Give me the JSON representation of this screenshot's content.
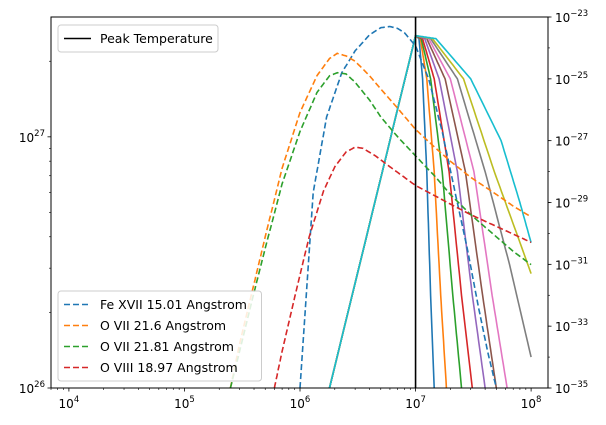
{
  "chart_data": {
    "type": "line",
    "x_scale": "log",
    "xlim": [
      7000,
      140000000
    ],
    "left_axis": {
      "scale": "log",
      "ylim": [
        1e+26,
        3e+27
      ]
    },
    "right_axis": {
      "scale": "log",
      "ylim": [
        1e-35,
        1e-23
      ]
    },
    "x_ticks": [
      {
        "value": 10000.0,
        "base": "10",
        "exp": "4"
      },
      {
        "value": 100000.0,
        "base": "10",
        "exp": "5"
      },
      {
        "value": 1000000.0,
        "base": "10",
        "exp": "6"
      },
      {
        "value": 10000000.0,
        "base": "10",
        "exp": "7"
      },
      {
        "value": 100000000.0,
        "base": "10",
        "exp": "8"
      }
    ],
    "left_ticks": [
      {
        "value": 1e+26,
        "base": "10",
        "exp": "26"
      },
      {
        "value": 1e+27,
        "base": "10",
        "exp": "27"
      }
    ],
    "right_ticks": [
      {
        "value": 1e-35,
        "base": "10",
        "exp": "−35"
      },
      {
        "value": 1e-33,
        "base": "10",
        "exp": "−33"
      },
      {
        "value": 1e-31,
        "base": "10",
        "exp": "−31"
      },
      {
        "value": 1e-29,
        "base": "10",
        "exp": "−29"
      },
      {
        "value": 1e-27,
        "base": "10",
        "exp": "−27"
      },
      {
        "value": 1e-25,
        "base": "10",
        "exp": "−25"
      },
      {
        "value": 1e-23,
        "base": "10",
        "exp": "−23"
      }
    ],
    "vline": {
      "x": 10000000.0,
      "label": "Peak Temperature",
      "color": "#000000"
    },
    "dashed_series": [
      {
        "name": "Fe XVII 15.01 Angstrom",
        "color": "#1f77b4",
        "axis": "left",
        "x": [
          1000000.0,
          1300000.0,
          1700000.0,
          2300000.0,
          3000000.0,
          4000000.0,
          5000000.0,
          6000000.0,
          7000000.0,
          8000000.0,
          10000000.0,
          13000000.0,
          17000000.0,
          22000000.0,
          28000000.0,
          35000000.0,
          42000000.0,
          50000000.0
        ],
        "y": [
          1e+26,
          6e+26,
          1.2e+27,
          1.8e+27,
          2.2e+27,
          2.55e+27,
          2.72e+27,
          2.75e+27,
          2.7e+27,
          2.6e+27,
          2.3e+27,
          1.7e+27,
          1.05e+27,
          6e+26,
          3.6e+26,
          2.1e+26,
          1.4e+26,
          1e+26
        ]
      },
      {
        "name": "O VII 21.6 Angstrom",
        "color": "#ff7f0e",
        "axis": "left",
        "x": [
          250000.0,
          300000.0,
          400000.0,
          500000.0,
          700000.0,
          1000000.0,
          1400000.0,
          1800000.0,
          2100000.0,
          2500000.0,
          3000000.0,
          4000000.0,
          5000000.0,
          7000000.0,
          10000000.0,
          15000000.0,
          20000000.0,
          30000000.0,
          50000000.0,
          70000000.0,
          100000000.0
        ],
        "y": [
          1e+26,
          1.5e+26,
          2.6e+26,
          4e+26,
          7.5e+26,
          1.25e+27,
          1.75e+27,
          2.05e+27,
          2.15e+27,
          2.1e+27,
          2e+27,
          1.75e+27,
          1.55e+27,
          1.3e+27,
          1.07e+27,
          9e+26,
          8e+26,
          6.9e+26,
          5.9e+26,
          5.3e+26,
          4.8e+26
        ]
      },
      {
        "name": "O VII 21.81 Angstrom",
        "color": "#2ca02c",
        "axis": "left",
        "x": [
          250000.0,
          300000.0,
          400000.0,
          500000.0,
          700000.0,
          1000000.0,
          1400000.0,
          1800000.0,
          2100000.0,
          2500000.0,
          3000000.0,
          4000000.0,
          5000000.0,
          7000000.0,
          10000000.0,
          15000000.0,
          20000000.0,
          30000000.0,
          50000000.0,
          70000000.0,
          100000000.0
        ],
        "y": [
          1e+26,
          1.4e+26,
          2.4e+26,
          3.6e+26,
          6.5e+26,
          1.05e+27,
          1.5e+27,
          1.75e+27,
          1.8e+27,
          1.78e+27,
          1.65e+27,
          1.4e+27,
          1.2e+27,
          1e+27,
          8.4e+26,
          6.9e+26,
          5.9e+26,
          4.9e+26,
          4e+26,
          3.5e+26,
          3.1e+26
        ]
      },
      {
        "name": "O VIII 18.97 Angstrom",
        "color": "#d62728",
        "axis": "left",
        "x": [
          600000.0,
          700000.0,
          900000.0,
          1200000.0,
          1600000.0,
          2000000.0,
          2500000.0,
          3000000.0,
          3500000.0,
          4500000.0,
          6000000.0,
          8000000.0,
          10000000.0,
          15000000.0,
          20000000.0,
          30000000.0,
          50000000.0,
          70000000.0,
          100000000.0
        ],
        "y": [
          1e+26,
          1.4e+26,
          2.3e+26,
          4e+26,
          6.1e+26,
          7.6e+26,
          8.7e+26,
          9.1e+26,
          9e+26,
          8.4e+26,
          7.6e+26,
          6.9e+26,
          6.4e+26,
          5.8e+26,
          5.4e+26,
          4.9e+26,
          4.4e+26,
          4.1e+26,
          3.8e+26
        ]
      }
    ],
    "solid_series": [
      {
        "color": "#1f77b4",
        "axis": "right",
        "x": [
          1800000.0,
          10000000.0,
          10700000.0,
          11500000.0,
          12500000.0,
          13500000.0,
          14500000.0
        ],
        "y": [
          1e-35,
          2.5e-24,
          2e-24,
          1e-25,
          1e-28,
          1e-32,
          1e-35
        ]
      },
      {
        "color": "#ff7f0e",
        "axis": "right",
        "x": [
          1800000.0,
          10000000.0,
          11000000.0,
          12500000.0,
          14500000.0,
          16500000.0,
          18500000.0
        ],
        "y": [
          1e-35,
          2.5e-24,
          2e-24,
          1e-25,
          1e-28,
          1e-32,
          1e-35
        ]
      },
      {
        "color": "#2ca02c",
        "axis": "right",
        "x": [
          1800000.0,
          10000000.0,
          11200000.0,
          13500000.0,
          17000000.0,
          21000000.0,
          25000000.0
        ],
        "y": [
          1e-35,
          2.5e-24,
          2e-24,
          1e-25,
          1e-28,
          1e-32,
          1e-35
        ]
      },
      {
        "color": "#d62728",
        "axis": "right",
        "x": [
          1800000.0,
          10000000.0,
          11500000.0,
          14500000.0,
          19500000.0,
          25000000.0,
          31000000.0
        ],
        "y": [
          1e-35,
          2.5e-24,
          2e-24,
          1e-25,
          1e-28,
          1e-32,
          1e-35
        ]
      },
      {
        "color": "#9467bd",
        "axis": "right",
        "x": [
          1800000.0,
          10000000.0,
          12000000.0,
          16000000.0,
          23000000.0,
          31000000.0,
          40000000.0
        ],
        "y": [
          1e-35,
          2.5e-24,
          2e-24,
          1e-25,
          1e-28,
          1e-32,
          1e-35
        ]
      },
      {
        "color": "#8c564b",
        "axis": "right",
        "x": [
          1800000.0,
          10000000.0,
          12500000.0,
          18000000.0,
          27000000.0,
          38000000.0,
          50000000.0
        ],
        "y": [
          1e-35,
          2.5e-24,
          2e-24,
          1e-25,
          1e-28,
          1e-32,
          1e-35
        ]
      },
      {
        "color": "#e377c2",
        "axis": "right",
        "x": [
          1800000.0,
          10000000.0,
          13000000.0,
          20000000.0,
          32000000.0,
          46000000.0,
          62000000.0
        ],
        "y": [
          1e-35,
          2.5e-24,
          2e-24,
          1e-25,
          1e-28,
          1e-32,
          1e-35
        ]
      },
      {
        "color": "#7f7f7f",
        "axis": "right",
        "x": [
          1800000.0,
          10000000.0,
          13500000.0,
          23000000.0,
          40000000.0,
          65000000.0,
          100000000.0
        ],
        "y": [
          1e-35,
          2.5e-24,
          2e-24,
          1e-25,
          1e-28,
          1e-31,
          1e-34
        ]
      },
      {
        "color": "#bcbd22",
        "axis": "right",
        "x": [
          1800000.0,
          10000000.0,
          14000000.0,
          26000000.0,
          48000000.0,
          75000000.0,
          100000000.0
        ],
        "y": [
          1e-35,
          2.5e-24,
          2e-24,
          1e-25,
          1e-28,
          1e-30,
          5e-32
        ]
      },
      {
        "color": "#17becf",
        "axis": "right",
        "x": [
          1800000.0,
          10000000.0,
          15000000.0,
          30000000.0,
          55000000.0,
          80000000.0,
          100000000.0
        ],
        "y": [
          1e-35,
          2.5e-24,
          2e-24,
          1e-25,
          1e-27,
          1e-29,
          5e-31
        ]
      }
    ],
    "legends": [
      {
        "position": "upper-left",
        "entries": [
          {
            "label": "Peak Temperature",
            "color": "#000000",
            "dash": false
          }
        ]
      },
      {
        "position": "lower-left",
        "entries": [
          {
            "label": "Fe XVII 15.01 Angstrom",
            "color": "#1f77b4",
            "dash": true
          },
          {
            "label": "O VII 21.6 Angstrom",
            "color": "#ff7f0e",
            "dash": true
          },
          {
            "label": "O VII 21.81 Angstrom",
            "color": "#2ca02c",
            "dash": true
          },
          {
            "label": "O VIII 18.97 Angstrom",
            "color": "#d62728",
            "dash": true
          }
        ]
      }
    ]
  }
}
